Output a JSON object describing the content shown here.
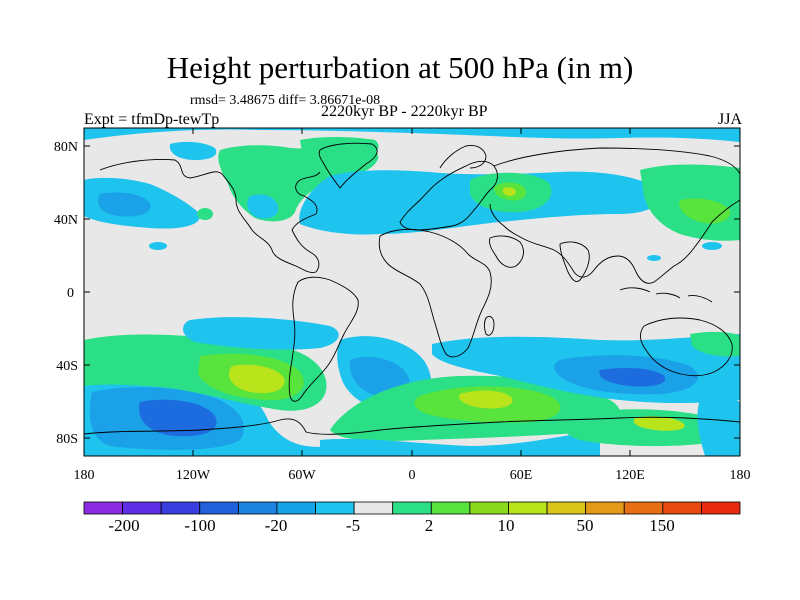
{
  "title": "Height perturbation at 500 hPa (in m)",
  "stats": "rmsd= 3.48675 diff= 3.86671e-08",
  "experiment": "Expt = tfmDp-tewTp",
  "period": "2220kyr BP - 2220kyr BP",
  "season": "JJA",
  "axes": {
    "lat_labels": [
      "80N",
      "40N",
      "0",
      "40S",
      "80S"
    ],
    "lon_labels": [
      "180",
      "120W",
      "60W",
      "0",
      "60E",
      "120E",
      "180"
    ]
  },
  "colors": {
    "background": "#e8e8e8",
    "coast": "#000000",
    "neg_light": "#1ec3ee",
    "neg_mid": "#1aa1e8",
    "neg_strong": "#1d6cdf",
    "pos_light": "#2bdf86",
    "pos_mid": "#58e33d",
    "pos_strong": "#b9e41c"
  },
  "colorbar": {
    "colors": [
      "#8b2be2",
      "#5e2fe4",
      "#3c3fe0",
      "#2260dc",
      "#1d83e0",
      "#16a2e6",
      "#1ec3ee",
      "#e8e8e8",
      "#2bdf86",
      "#58e33d",
      "#8ad91f",
      "#b9e41c",
      "#d9c81a",
      "#e49a18",
      "#e86e15",
      "#e84a12",
      "#e82a10"
    ],
    "labels": [
      "-200",
      "-100",
      "-20",
      "-5",
      "2",
      "10",
      "50",
      "150"
    ]
  }
}
